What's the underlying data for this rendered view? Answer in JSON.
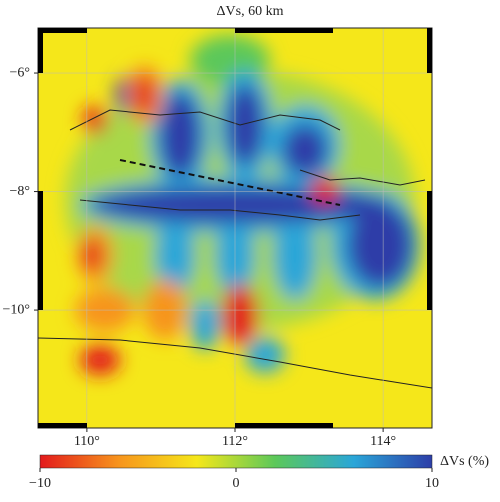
{
  "map": {
    "title": "ΔVs, 60 km",
    "xlim": [
      109.34,
      114.66
    ],
    "ylim": [
      -11.99,
      -5.24
    ],
    "xticks": [
      {
        "value": 110,
        "label": "110°"
      },
      {
        "value": 112,
        "label": "112°"
      },
      {
        "value": 114,
        "label": "114°"
      }
    ],
    "yticks": [
      {
        "value": -6,
        "label": "−6°"
      },
      {
        "value": -8,
        "label": "−8°"
      },
      {
        "value": -10,
        "label": "−10°"
      }
    ],
    "grid": true,
    "colorbar": {
      "label": "ΔVs (%)",
      "lim": [
        -10,
        10
      ],
      "ticks": [
        {
          "value": -10,
          "label": "−10"
        },
        0,
        10
      ],
      "colors": [
        "#e31a1c",
        "#f7941d",
        "#f5e71a",
        "#5cc85a",
        "#2aa6d8",
        "#2d3ea8"
      ]
    }
  }
}
